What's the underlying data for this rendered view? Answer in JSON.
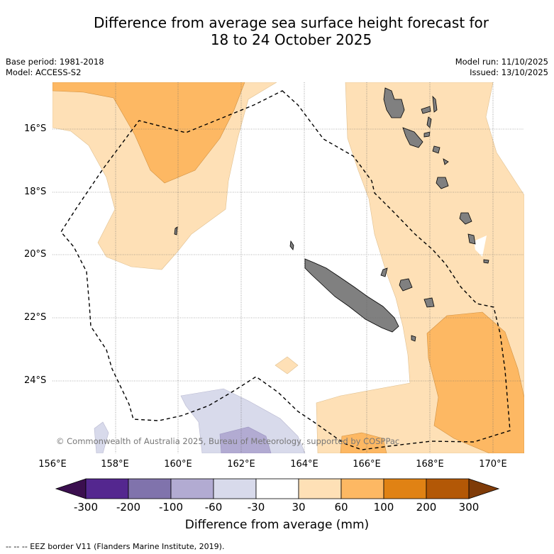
{
  "title": {
    "line1": "Difference from average sea surface height forecast for",
    "line2": "18 to 24 October 2025"
  },
  "meta": {
    "base_period": "Base period: 1981-2018",
    "model": "Model: ACCESS-S2",
    "model_run": "Model run: 11/10/2025",
    "issued": "Issued: 13/10/2025"
  },
  "axes": {
    "lat_labels": [
      "16°S",
      "18°S",
      "20°S",
      "22°S",
      "24°S"
    ],
    "lon_labels": [
      "156°E",
      "158°E",
      "160°E",
      "162°E",
      "164°E",
      "166°E",
      "168°E",
      "170°E"
    ]
  },
  "copyright": "© Commonwealth of Australia 2025, Bureau of Meteorology, supported by COSPPac",
  "colorbar": {
    "title": "Difference from average (mm)",
    "tick_labels": [
      "-300",
      "-200",
      "-100",
      "-60",
      "-30",
      "30",
      "60",
      "100",
      "200",
      "300"
    ],
    "colors": {
      "below_min": "#3b0f4f",
      "c1": "#54278f",
      "c2": "#8073ac",
      "c3": "#b2abd2",
      "c4": "#d8daeb",
      "c5": "#ffffff",
      "c6": "#fee0b6",
      "c7": "#fdb863",
      "c8": "#e08214",
      "c9": "#b35806",
      "above_max": "#7f3b08"
    }
  },
  "legend_note": "--  --  -- EEZ border V11 (Flanders Marine Institute, 2019).",
  "map_colors": {
    "land": "#808080",
    "light_orange": "#fee0b6",
    "orange": "#fdb863",
    "light_purple": "#d8daeb",
    "purple": "#b2abd2"
  }
}
